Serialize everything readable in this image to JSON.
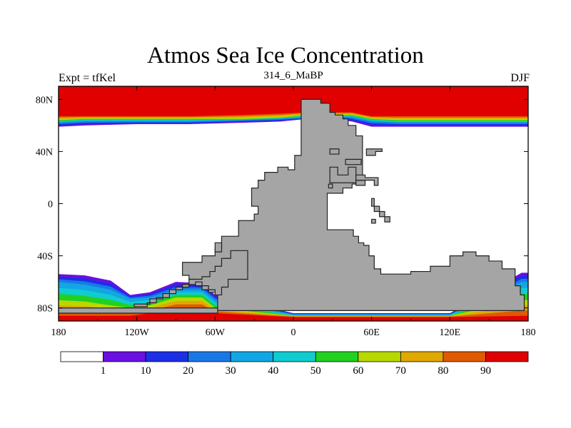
{
  "chart_data": {
    "type": "heatmap",
    "title": "Atmos Sea Ice Concentration",
    "subtitle_left": "Expt = tfKel",
    "subtitle_center": "314_6_MaBP",
    "subtitle_right": "DJF",
    "xlim": [
      -180,
      180
    ],
    "ylim": [
      -90,
      90
    ],
    "x_ticks": [
      {
        "value": -180,
        "label": "180"
      },
      {
        "value": -120,
        "label": "120W"
      },
      {
        "value": -60,
        "label": "60W"
      },
      {
        "value": 0,
        "label": "0"
      },
      {
        "value": 60,
        "label": "60E"
      },
      {
        "value": 120,
        "label": "120E"
      },
      {
        "value": 180,
        "label": "180"
      }
    ],
    "y_ticks": [
      {
        "value": 80,
        "label": "80N"
      },
      {
        "value": 40,
        "label": "40N"
      },
      {
        "value": 0,
        "label": "0"
      },
      {
        "value": -40,
        "label": "40S"
      },
      {
        "value": -80,
        "label": "80S"
      }
    ],
    "colorbar": {
      "levels": [
        "1",
        "10",
        "20",
        "30",
        "40",
        "50",
        "60",
        "70",
        "80",
        "90"
      ],
      "colors": [
        "#ffffff",
        "#6a10e0",
        "#1c2ee6",
        "#1a78e6",
        "#12a6e2",
        "#10ccd0",
        "#22d022",
        "#b8d800",
        "#e0a800",
        "#e05a00",
        "#e00000"
      ]
    },
    "land_color": "#a5a5a5",
    "northern_ice": [
      {
        "lon": -180,
        "edge": 59,
        "c30": 62,
        "c60": 64,
        "c90": 67
      },
      {
        "lon": -160,
        "edge": 60,
        "c30": 63,
        "c60": 65,
        "c90": 67
      },
      {
        "lon": -120,
        "edge": 61,
        "c30": 63,
        "c60": 65,
        "c90": 67
      },
      {
        "lon": -80,
        "edge": 61,
        "c30": 63,
        "c60": 65,
        "c90": 67
      },
      {
        "lon": -40,
        "edge": 62,
        "c30": 64,
        "c60": 65,
        "c90": 68
      },
      {
        "lon": -10,
        "edge": 63,
        "c30": 65,
        "c60": 66,
        "c90": 69
      },
      {
        "lon": 10,
        "edge": 65,
        "c30": 66,
        "c60": 68,
        "c90": 70
      },
      {
        "lon": 30,
        "edge": 65,
        "c30": 67,
        "c60": 68,
        "c90": 70
      },
      {
        "lon": 45,
        "edge": 63,
        "c30": 66,
        "c60": 68,
        "c90": 70
      },
      {
        "lon": 60,
        "edge": 59,
        "c30": 63,
        "c60": 65,
        "c90": 67
      },
      {
        "lon": 80,
        "edge": 59,
        "c30": 62,
        "c60": 64,
        "c90": 67
      },
      {
        "lon": 120,
        "edge": 59,
        "c30": 62,
        "c60": 64,
        "c90": 67
      },
      {
        "lon": 160,
        "edge": 59,
        "c30": 62,
        "c60": 64,
        "c90": 67
      },
      {
        "lon": 180,
        "edge": 59,
        "c30": 62,
        "c60": 64,
        "c90": 67
      }
    ],
    "southern_ice": [
      {
        "lon": -180,
        "edge": -54,
        "c30": -60,
        "c60": -74,
        "c90": -86
      },
      {
        "lon": -160,
        "edge": -55,
        "c30": -62,
        "c60": -75,
        "c90": -86
      },
      {
        "lon": -140,
        "edge": -59,
        "c30": -66,
        "c60": -78,
        "c90": -86
      },
      {
        "lon": -125,
        "edge": -70,
        "c30": -73,
        "c60": -80,
        "c90": -86
      },
      {
        "lon": -110,
        "edge": -68,
        "c30": -72,
        "c60": -78,
        "c90": -84
      },
      {
        "lon": -90,
        "edge": -60,
        "c30": -66,
        "c60": -72,
        "c90": -80
      },
      {
        "lon": -70,
        "edge": -61,
        "c30": -66,
        "c60": -72,
        "c90": -80
      },
      {
        "lon": -60,
        "edge": -70,
        "c30": -74,
        "c60": -80,
        "c90": -84
      },
      {
        "lon": 0,
        "edge": -84,
        "c30": -85,
        "c60": -86,
        "c90": -87
      },
      {
        "lon": 60,
        "edge": -84,
        "c30": -85,
        "c60": -86,
        "c90": -87
      },
      {
        "lon": 120,
        "edge": -84,
        "c30": -85,
        "c60": -86,
        "c90": -87
      },
      {
        "lon": 175,
        "edge": -53,
        "c30": -60,
        "c60": -74,
        "c90": -86
      },
      {
        "lon": 180,
        "edge": -53,
        "c30": -60,
        "c60": -74,
        "c90": -86
      }
    ],
    "landmasses": [
      {
        "name": "pangea",
        "points": [
          [
            6,
            80
          ],
          [
            21,
            80
          ],
          [
            21,
            77
          ],
          [
            28,
            77
          ],
          [
            28,
            70
          ],
          [
            32,
            70
          ],
          [
            32,
            68
          ],
          [
            38,
            68
          ],
          [
            38,
            65
          ],
          [
            42,
            65
          ],
          [
            42,
            60
          ],
          [
            48,
            60
          ],
          [
            48,
            52
          ],
          [
            53,
            52
          ],
          [
            53,
            20
          ],
          [
            50,
            20
          ],
          [
            50,
            15
          ],
          [
            45,
            15
          ],
          [
            45,
            12
          ],
          [
            38,
            12
          ],
          [
            38,
            8
          ],
          [
            26,
            8
          ],
          [
            26,
            -20
          ],
          [
            46,
            -20
          ],
          [
            46,
            -25
          ],
          [
            50,
            -25
          ],
          [
            50,
            -30
          ],
          [
            54,
            -30
          ],
          [
            54,
            -32
          ],
          [
            58,
            -32
          ],
          [
            58,
            -40
          ],
          [
            62,
            -40
          ],
          [
            62,
            -50
          ],
          [
            67,
            -50
          ],
          [
            67,
            -54
          ],
          [
            90,
            -54
          ],
          [
            90,
            -52
          ],
          [
            105,
            -52
          ],
          [
            105,
            -48
          ],
          [
            120,
            -48
          ],
          [
            120,
            -40
          ],
          [
            130,
            -40
          ],
          [
            130,
            -37
          ],
          [
            140,
            -37
          ],
          [
            140,
            -40
          ],
          [
            150,
            -40
          ],
          [
            150,
            -44
          ],
          [
            160,
            -44
          ],
          [
            160,
            -50
          ],
          [
            170,
            -50
          ],
          [
            170,
            -63
          ],
          [
            174,
            -63
          ],
          [
            174,
            -70
          ],
          [
            177,
            -70
          ],
          [
            177,
            -82
          ],
          [
            -58,
            -82
          ],
          [
            -58,
            -68
          ],
          [
            -65,
            -68
          ],
          [
            -65,
            -66
          ],
          [
            -70,
            -66
          ],
          [
            -70,
            -63
          ],
          [
            -75,
            -63
          ],
          [
            -75,
            -58
          ],
          [
            -80,
            -58
          ],
          [
            -80,
            -55
          ],
          [
            -85,
            -55
          ],
          [
            -85,
            -45
          ],
          [
            -70,
            -45
          ],
          [
            -70,
            -40
          ],
          [
            -60,
            -40
          ],
          [
            -60,
            -34
          ],
          [
            -55,
            -34
          ],
          [
            -55,
            -25
          ],
          [
            -42,
            -25
          ],
          [
            -42,
            -13
          ],
          [
            -30,
            -13
          ],
          [
            -30,
            -8
          ],
          [
            -27,
            -8
          ],
          [
            -27,
            -2
          ],
          [
            -32,
            -2
          ],
          [
            -32,
            12
          ],
          [
            -27,
            12
          ],
          [
            -27,
            18
          ],
          [
            -22,
            18
          ],
          [
            -22,
            24
          ],
          [
            -12,
            24
          ],
          [
            -12,
            28
          ],
          [
            -4,
            28
          ],
          [
            -4,
            26
          ],
          [
            1,
            26
          ],
          [
            1,
            37
          ],
          [
            6,
            37
          ]
        ]
      },
      {
        "name": "china-block",
        "points": [
          [
            28,
            42
          ],
          [
            28,
            38
          ],
          [
            35,
            38
          ],
          [
            35,
            42
          ]
        ]
      },
      {
        "name": "east-ridge",
        "points": [
          [
            28,
            28
          ],
          [
            28,
            16
          ],
          [
            48,
            16
          ],
          [
            48,
            28
          ],
          [
            42,
            28
          ],
          [
            42,
            22
          ],
          [
            34,
            22
          ],
          [
            34,
            28
          ]
        ]
      },
      {
        "name": "east-island-1",
        "points": [
          [
            27,
            12
          ],
          [
            30,
            12
          ],
          [
            30,
            15
          ],
          [
            27,
            15
          ]
        ]
      },
      {
        "name": "east-island-2",
        "points": [
          [
            48,
            14
          ],
          [
            55,
            14
          ],
          [
            55,
            18
          ],
          [
            48,
            18
          ]
        ]
      },
      {
        "name": "east-island-3",
        "points": [
          [
            40,
            30
          ],
          [
            52,
            30
          ],
          [
            52,
            34
          ],
          [
            40,
            34
          ]
        ]
      },
      {
        "name": "south-china",
        "points": [
          [
            48,
            18
          ],
          [
            62,
            18
          ],
          [
            62,
            14
          ],
          [
            65,
            14
          ],
          [
            65,
            20
          ],
          [
            55,
            20
          ],
          [
            55,
            22
          ],
          [
            48,
            22
          ]
        ]
      },
      {
        "name": "siberian-bar",
        "points": [
          [
            56,
            40
          ],
          [
            56,
            37
          ],
          [
            63,
            37
          ],
          [
            63,
            40
          ],
          [
            68,
            40
          ],
          [
            68,
            42
          ],
          [
            56,
            42
          ]
        ]
      },
      {
        "name": "malay-chain",
        "points": [
          [
            62,
            4
          ],
          [
            62,
            -2
          ],
          [
            66,
            -2
          ],
          [
            66,
            -6
          ],
          [
            70,
            -6
          ],
          [
            70,
            -10
          ],
          [
            74,
            -10
          ],
          [
            74,
            -14
          ],
          [
            70,
            -14
          ],
          [
            70,
            -10
          ],
          [
            66,
            -10
          ],
          [
            66,
            -6
          ],
          [
            62,
            -6
          ],
          [
            62,
            -2
          ],
          [
            60,
            -2
          ],
          [
            60,
            4
          ]
        ]
      },
      {
        "name": "indochina-isl",
        "points": [
          [
            60,
            -12
          ],
          [
            63,
            -12
          ],
          [
            63,
            -15
          ],
          [
            60,
            -15
          ]
        ]
      },
      {
        "name": "central-america-west",
        "points": [
          [
            -60,
            -37
          ],
          [
            -55,
            -37
          ],
          [
            -55,
            -30
          ],
          [
            -60,
            -30
          ]
        ]
      },
      {
        "name": "antarctic-arc",
        "points": [
          [
            -122,
            -79
          ],
          [
            -122,
            -77
          ],
          [
            -110,
            -77
          ],
          [
            -110,
            -73
          ],
          [
            -100,
            -73
          ],
          [
            -100,
            -69
          ],
          [
            -90,
            -69
          ],
          [
            -90,
            -64
          ],
          [
            -80,
            -64
          ],
          [
            -80,
            -58
          ],
          [
            -70,
            -58
          ],
          [
            -70,
            -56
          ],
          [
            -64,
            -56
          ],
          [
            -64,
            -52
          ],
          [
            -60,
            -52
          ],
          [
            -60,
            -48
          ],
          [
            -55,
            -48
          ],
          [
            -55,
            -42
          ],
          [
            -48,
            -42
          ],
          [
            -48,
            -36
          ],
          [
            -35,
            -36
          ],
          [
            -35,
            -58
          ],
          [
            -50,
            -58
          ],
          [
            -50,
            -64
          ],
          [
            -55,
            -64
          ],
          [
            -55,
            -70
          ],
          [
            -60,
            -70
          ],
          [
            -60,
            -66
          ],
          [
            -65,
            -66
          ],
          [
            -65,
            -63
          ],
          [
            -70,
            -63
          ],
          [
            -70,
            -60
          ],
          [
            -75,
            -60
          ],
          [
            -75,
            -62
          ],
          [
            -85,
            -62
          ],
          [
            -85,
            -66
          ],
          [
            -95,
            -66
          ],
          [
            -95,
            -72
          ],
          [
            -105,
            -72
          ],
          [
            -105,
            -76
          ],
          [
            -112,
            -76
          ],
          [
            -112,
            -79
          ]
        ]
      },
      {
        "name": "antarctic-lower",
        "points": [
          [
            -180,
            -80
          ],
          [
            -58,
            -80
          ],
          [
            -58,
            -84
          ],
          [
            -180,
            -84
          ]
        ]
      }
    ]
  }
}
